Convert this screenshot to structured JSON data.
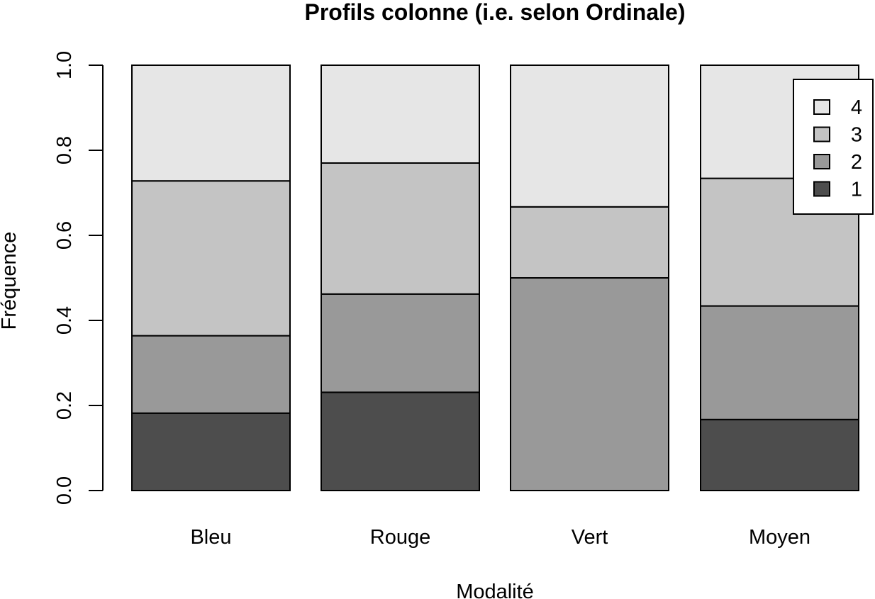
{
  "chart_data": {
    "type": "bar",
    "stacked": true,
    "title": "Profils colonne (i.e. selon Ordinale)",
    "xlabel": "Modalité",
    "ylabel": "Fréquence",
    "ylim": [
      0,
      1
    ],
    "yticks": [
      "0.0",
      "0.2",
      "0.4",
      "0.6",
      "0.8",
      "1.0"
    ],
    "categories": [
      "Bleu",
      "Rouge",
      "Vert",
      "Moyen"
    ],
    "series": [
      {
        "name": "1",
        "color": "#4d4d4d",
        "values": [
          0.182,
          0.231,
          0.0,
          0.167
        ]
      },
      {
        "name": "2",
        "color": "#999999",
        "values": [
          0.182,
          0.231,
          0.5,
          0.267
        ]
      },
      {
        "name": "3",
        "color": "#c4c4c4",
        "values": [
          0.364,
          0.308,
          0.167,
          0.3
        ]
      },
      {
        "name": "4",
        "color": "#e6e6e6",
        "values": [
          0.272,
          0.23,
          0.333,
          0.266
        ]
      }
    ],
    "legend": {
      "position": "top-right",
      "order": [
        "4",
        "3",
        "2",
        "1"
      ]
    },
    "grid": false
  }
}
